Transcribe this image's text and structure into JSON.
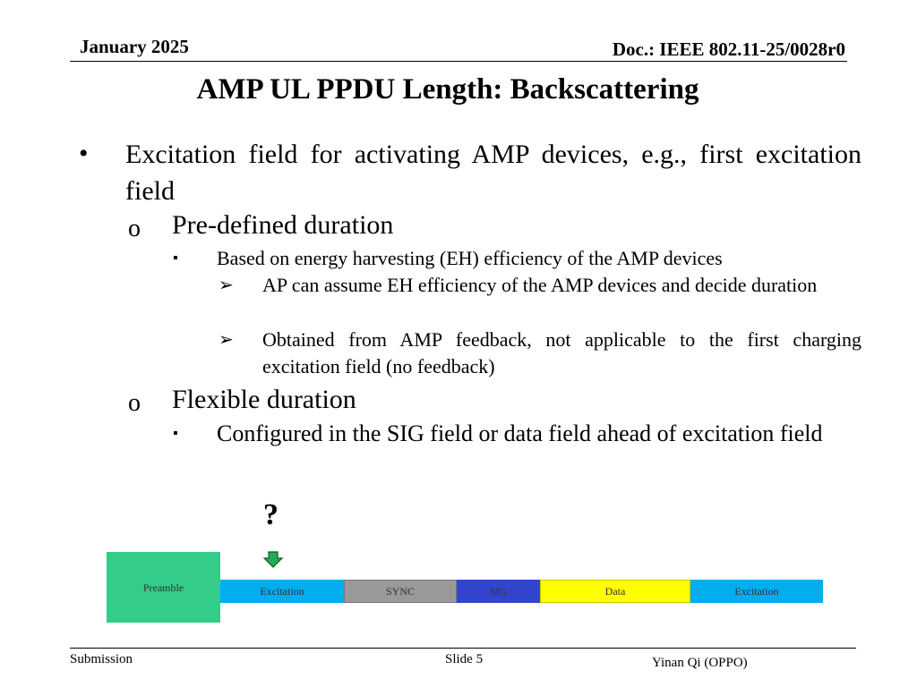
{
  "header": {
    "date": "January 2025",
    "doc": "Doc.: IEEE 802.11-25/0028r0"
  },
  "title": "AMP UL PPDU Length: Backscattering",
  "bullets": {
    "l1_marker": "•",
    "l1_text": "Excitation field for activating AMP devices, e.g., first excitation field",
    "predefined": {
      "marker": "o",
      "text": "Pre-defined duration",
      "sub_marker": "▪",
      "sub_text": "Based on energy harvesting (EH) efficiency of the AMP devices",
      "items": [
        {
          "marker": "➢",
          "text": "AP can assume EH efficiency of the AMP devices and decide duration"
        },
        {
          "marker": "➢",
          "text": "Obtained from AMP feedback, not applicable to the first charging excitation field (no feedback)"
        }
      ]
    },
    "flexible": {
      "marker": "o",
      "text": "Flexible duration",
      "sub_marker": "▪",
      "sub_text": "Configured in the SIG field or data field ahead of excitation field"
    }
  },
  "diagram": {
    "question": "?",
    "preamble": "Preamble",
    "segments": [
      {
        "label": "Excitation",
        "color": "#00aeef"
      },
      {
        "label": "SYNC",
        "color": "#999999"
      },
      {
        "label": "SIG",
        "color": "#3344cc"
      },
      {
        "label": "Data",
        "color": "#ffff00"
      },
      {
        "label": "Excitation",
        "color": "#00aeef"
      }
    ]
  },
  "footer": {
    "submission": "Submission",
    "slide": "Slide 5",
    "author": "Yinan Qi (OPPO)"
  }
}
